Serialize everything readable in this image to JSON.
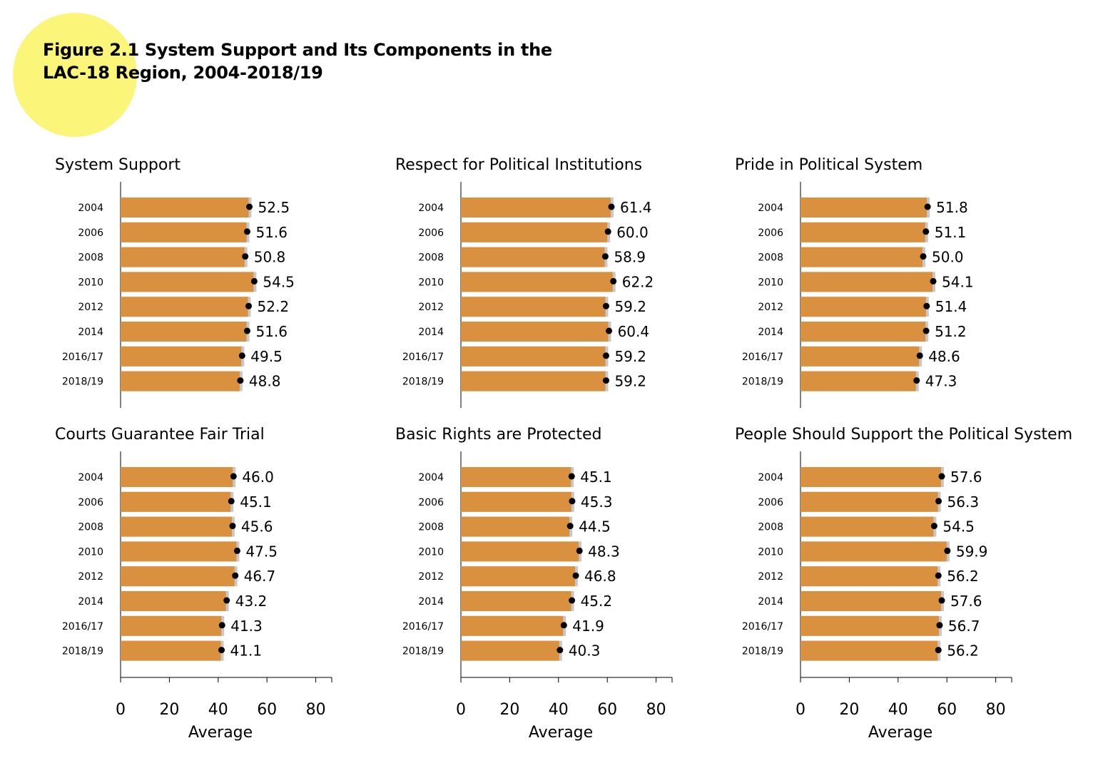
{
  "figure": {
    "title_line1": "Figure 2.1 System Support and Its Components in the",
    "title_line2": "LAC-18 Region, 2004-2018/19"
  },
  "colors": {
    "bar": "#d9913f",
    "ci": "#c8c8c8",
    "dot": "#000000",
    "highlight": "#fbf57a"
  },
  "chart_data": [
    {
      "type": "bar",
      "orientation": "horizontal",
      "title": "System Support",
      "categories": [
        "2004",
        "2006",
        "2008",
        "2010",
        "2012",
        "2014",
        "2016/17",
        "2018/19"
      ],
      "values": [
        52.5,
        51.6,
        50.8,
        54.5,
        52.2,
        51.6,
        49.5,
        48.8
      ],
      "xlabel": "",
      "xlim": [
        0,
        86
      ],
      "xticks": [],
      "grid": false
    },
    {
      "type": "bar",
      "orientation": "horizontal",
      "title": "Respect for Political Institutions",
      "categories": [
        "2004",
        "2006",
        "2008",
        "2010",
        "2012",
        "2014",
        "2016/17",
        "2018/19"
      ],
      "values": [
        61.4,
        60.0,
        58.9,
        62.2,
        59.2,
        60.4,
        59.2,
        59.2
      ],
      "xlabel": "",
      "xlim": [
        0,
        86
      ],
      "xticks": [],
      "grid": false
    },
    {
      "type": "bar",
      "orientation": "horizontal",
      "title": "Pride in Political System",
      "categories": [
        "2004",
        "2006",
        "2008",
        "2010",
        "2012",
        "2014",
        "2016/17",
        "2018/19"
      ],
      "values": [
        51.8,
        51.1,
        50.0,
        54.1,
        51.4,
        51.2,
        48.6,
        47.3
      ],
      "xlabel": "",
      "xlim": [
        0,
        86
      ],
      "xticks": [],
      "grid": false
    },
    {
      "type": "bar",
      "orientation": "horizontal",
      "title": "Courts Guarantee Fair Trial",
      "categories": [
        "2004",
        "2006",
        "2008",
        "2010",
        "2012",
        "2014",
        "2016/17",
        "2018/19"
      ],
      "values": [
        46.0,
        45.1,
        45.6,
        47.5,
        46.7,
        43.2,
        41.3,
        41.1
      ],
      "xlabel": "Average",
      "xlim": [
        0,
        86
      ],
      "xticks": [
        "0",
        "20",
        "40",
        "60",
        "80"
      ],
      "grid": false
    },
    {
      "type": "bar",
      "orientation": "horizontal",
      "title": "Basic Rights are Protected",
      "categories": [
        "2004",
        "2006",
        "2008",
        "2010",
        "2012",
        "2014",
        "2016/17",
        "2018/19"
      ],
      "values": [
        45.1,
        45.3,
        44.5,
        48.3,
        46.8,
        45.2,
        41.9,
        40.3
      ],
      "xlabel": "Average",
      "xlim": [
        0,
        86
      ],
      "xticks": [
        "0",
        "20",
        "40",
        "60",
        "80"
      ],
      "grid": false
    },
    {
      "type": "bar",
      "orientation": "horizontal",
      "title": "People Should Support the Political System",
      "categories": [
        "2004",
        "2006",
        "2008",
        "2010",
        "2012",
        "2014",
        "2016/17",
        "2018/19"
      ],
      "values": [
        57.6,
        56.3,
        54.5,
        59.9,
        56.2,
        57.6,
        56.7,
        56.2
      ],
      "xlabel": "Average",
      "xlim": [
        0,
        86
      ],
      "xticks": [
        "0",
        "20",
        "40",
        "60",
        "80"
      ],
      "grid": false
    }
  ]
}
